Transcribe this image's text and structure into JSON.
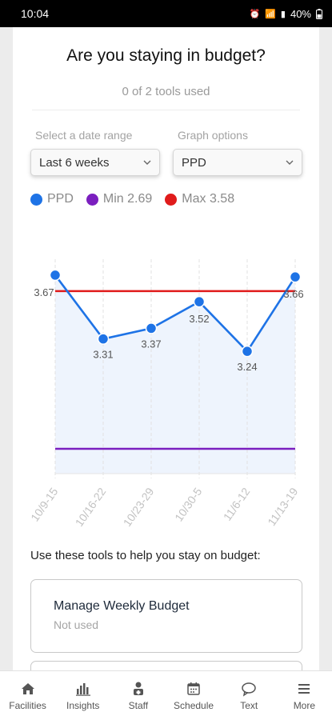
{
  "status": {
    "time": "10:04",
    "battery": "40%"
  },
  "title": "Are you staying in budget?",
  "subtitle": "0 of 2 tools used",
  "filters": {
    "date_label": "Select a date range",
    "date_value": "Last 6 weeks",
    "graph_label": "Graph options",
    "graph_value": "PPD"
  },
  "legend": [
    {
      "label": "PPD",
      "color": "#1e73e6"
    },
    {
      "label": "Min 2.69",
      "color": "#7b1fbf"
    },
    {
      "label": "Max 3.58",
      "color": "#e01b1b"
    }
  ],
  "chart_data": {
    "type": "line",
    "categories": [
      "10/9-15",
      "10/16-22",
      "10/23-29",
      "10/30-5",
      "11/6-12",
      "11/13-19"
    ],
    "series": [
      {
        "name": "PPD",
        "values": [
          3.67,
          3.31,
          3.37,
          3.52,
          3.24,
          3.66
        ],
        "labels": [
          "3.67",
          "3.31",
          "3.37",
          "3.52",
          "3.24",
          "3.66"
        ],
        "color": "#1e73e6"
      }
    ],
    "reference_lines": [
      {
        "name": "Min 2.69",
        "value": 2.69,
        "color": "#7b1fbf"
      },
      {
        "name": "Max 3.58",
        "value": 3.58,
        "color": "#e01b1b"
      }
    ],
    "ylim": [
      2.55,
      3.76
    ],
    "grid": "vertical dashed",
    "legend": "top-left"
  },
  "tools": {
    "heading": "Use these tools to help you stay on budget:",
    "items": [
      {
        "name": "Manage Weekly Budget",
        "status": "Not used"
      }
    ]
  },
  "nav": {
    "items": [
      {
        "label": "Facilities",
        "icon": "home-icon"
      },
      {
        "label": "Insights",
        "icon": "bar-chart-icon"
      },
      {
        "label": "Staff",
        "icon": "staff-icon"
      },
      {
        "label": "Schedule",
        "icon": "calendar-icon"
      },
      {
        "label": "Text",
        "icon": "chat-bubble-icon"
      },
      {
        "label": "More",
        "icon": "menu-icon"
      }
    ]
  }
}
